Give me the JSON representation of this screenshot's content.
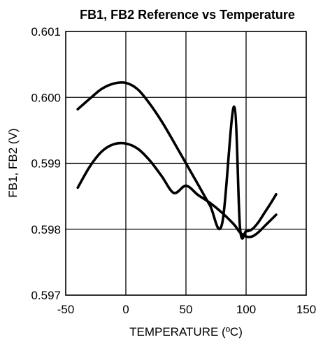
{
  "chart_data": {
    "type": "line",
    "title": "FB1, FB2 Reference vs Temperature",
    "xlabel": "TEMPERATURE (ºC)",
    "ylabel": "FB1, FB2 (V)",
    "xlim": [
      -50,
      150
    ],
    "ylim": [
      0.597,
      0.601
    ],
    "x_ticks": [
      "-50",
      "0",
      "50",
      "100",
      "150"
    ],
    "y_ticks": [
      "0.597",
      "0.598",
      "0.599",
      "0.600",
      "0.601"
    ],
    "grid": true,
    "series": [
      {
        "x": [
          -40,
          -30,
          -20,
          -10,
          0,
          10,
          20,
          30,
          40,
          50,
          60,
          70,
          80,
          90,
          95,
          100,
          105,
          110,
          115,
          120,
          125
        ],
        "y": [
          0.59982,
          0.59998,
          0.60013,
          0.60021,
          0.60022,
          0.60012,
          0.5999,
          0.59963,
          0.59932,
          0.599,
          0.59868,
          0.59836,
          0.59808,
          0.59986,
          0.59801,
          0.59797,
          0.598,
          0.5981,
          0.59824,
          0.59838,
          0.59853
        ]
      },
      {
        "x": [
          -40,
          -30,
          -20,
          -10,
          0,
          10,
          20,
          30,
          40,
          50,
          60,
          70,
          80,
          90,
          95,
          100,
          105,
          110,
          115,
          120,
          125
        ],
        "y": [
          0.59863,
          0.59895,
          0.59918,
          0.59929,
          0.5993,
          0.59922,
          0.59904,
          0.5988,
          0.59855,
          0.59866,
          0.59852,
          0.5984,
          0.59825,
          0.59807,
          0.59795,
          0.59789,
          0.59789,
          0.59795,
          0.59804,
          0.59813,
          0.59822
        ]
      }
    ]
  }
}
